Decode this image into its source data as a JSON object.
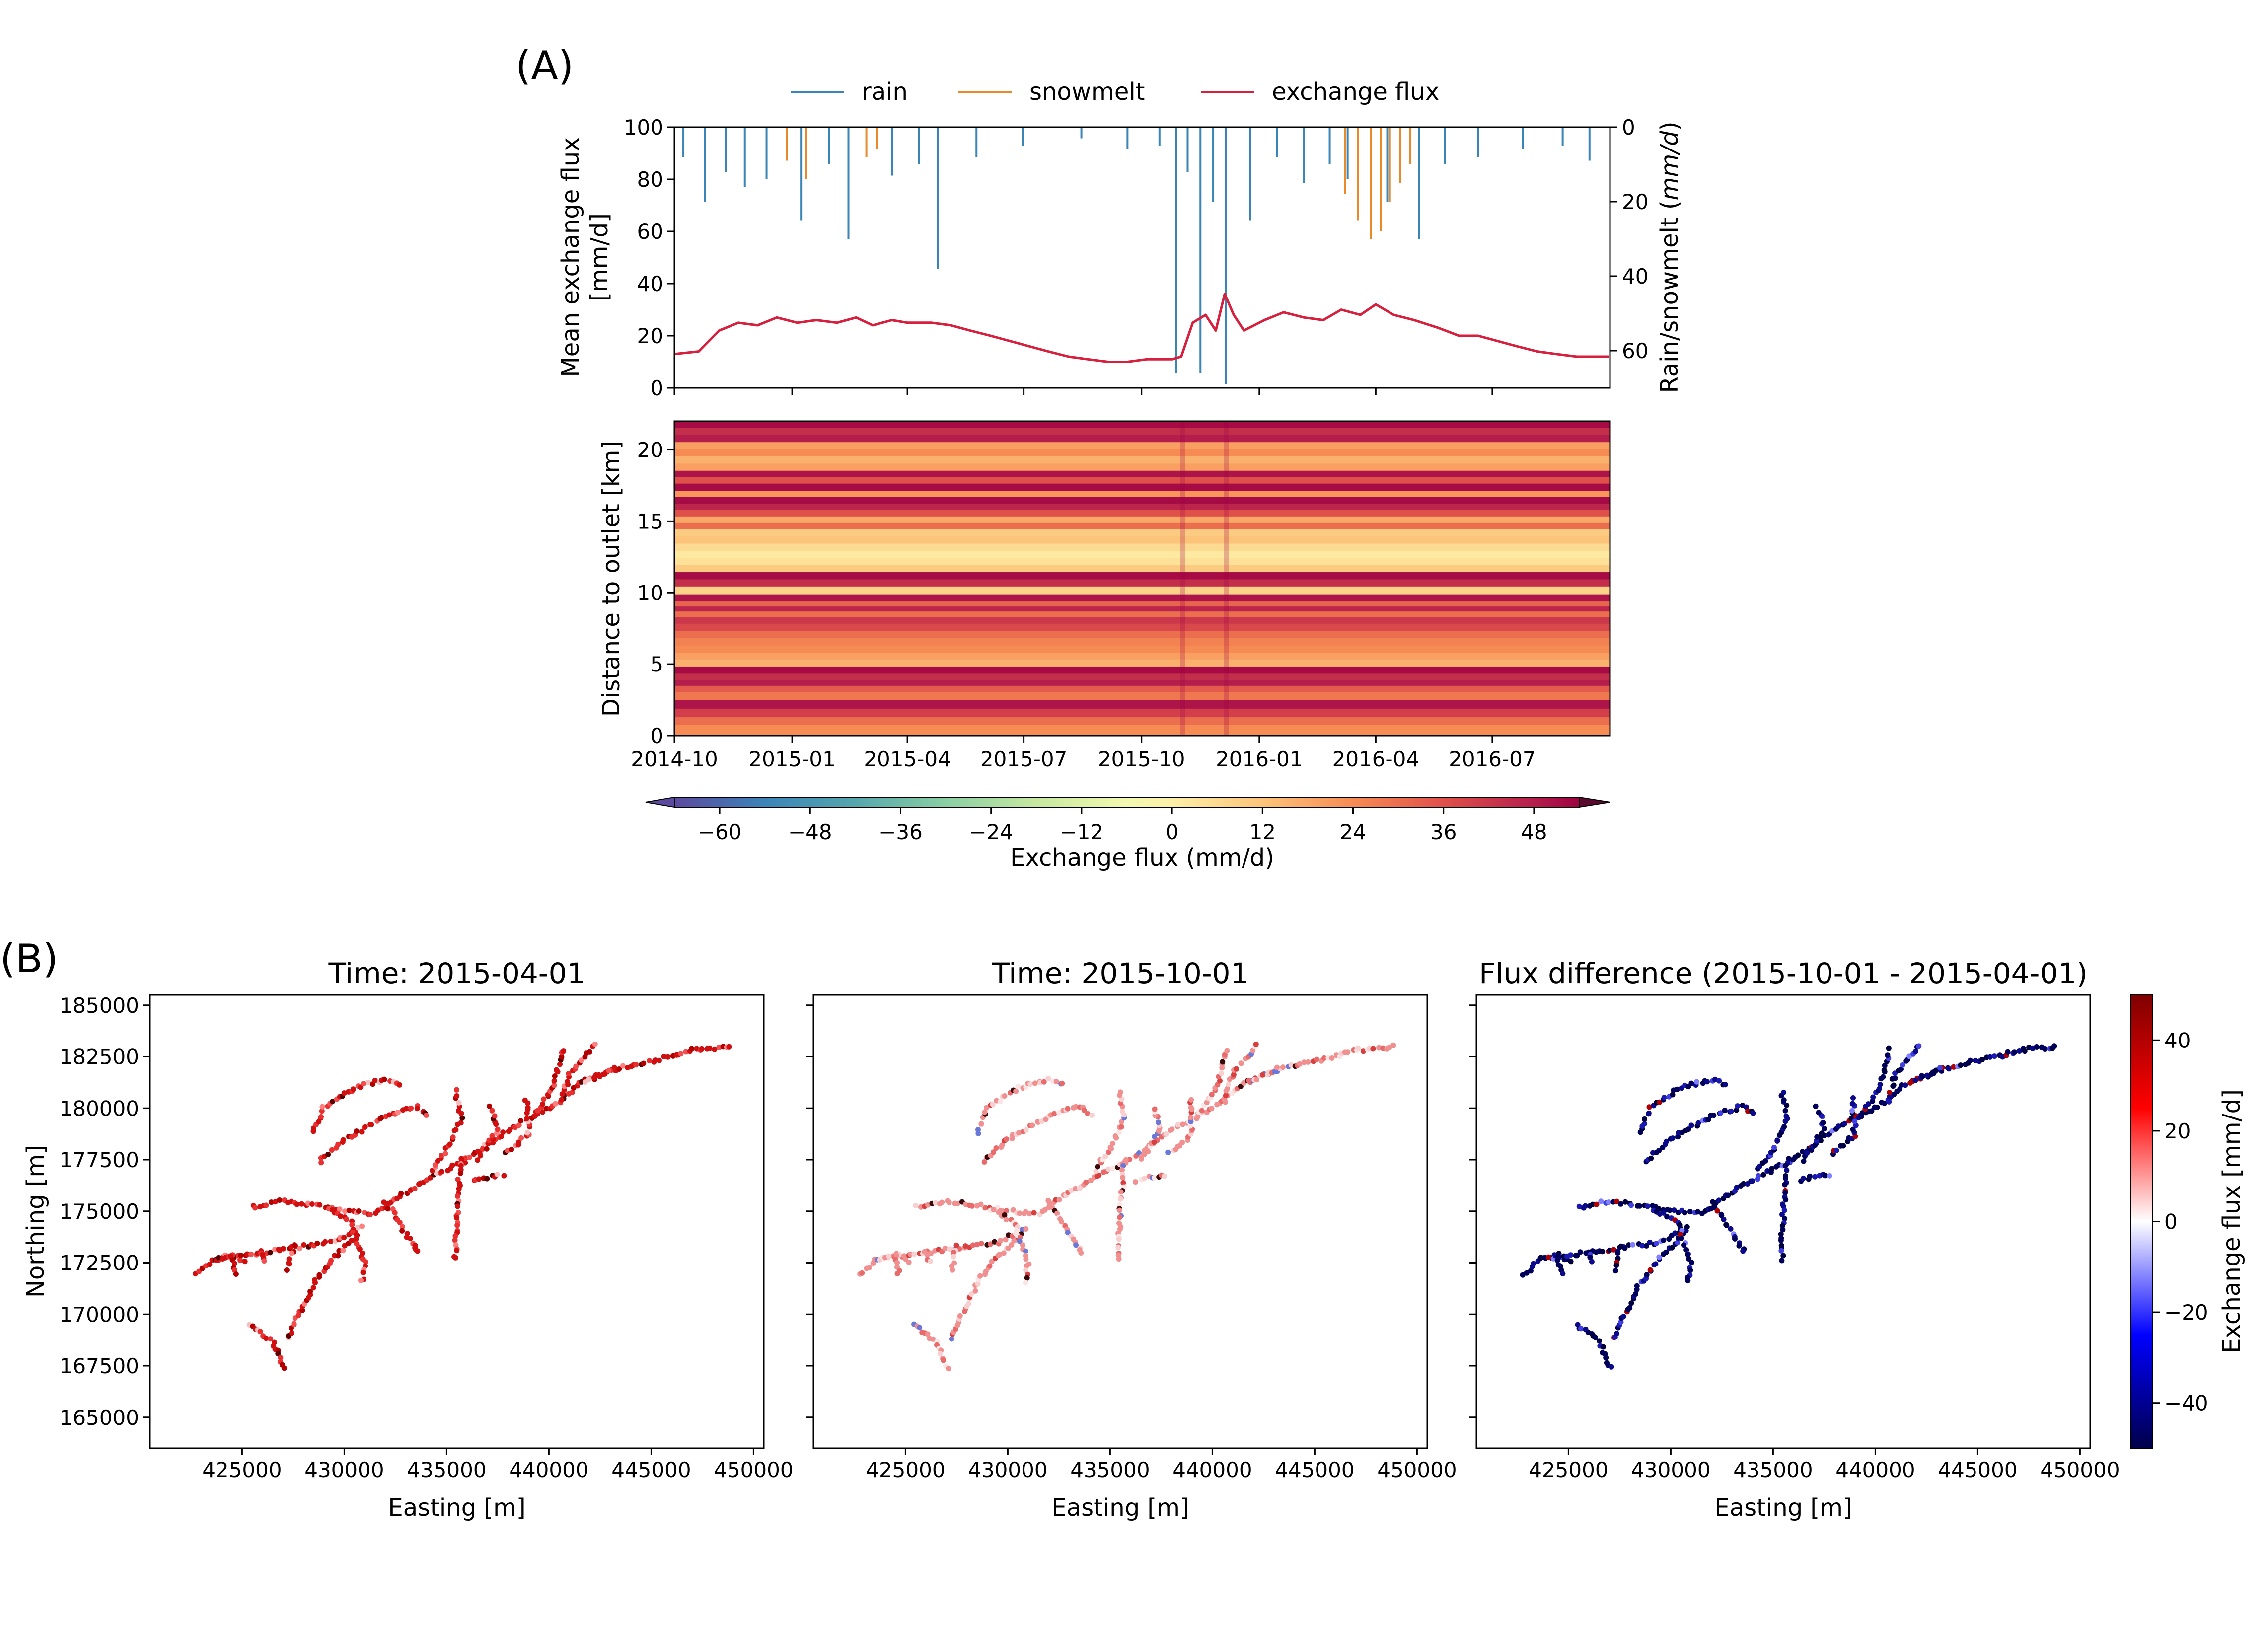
{
  "panel_labels": {
    "a": "(A)",
    "b": "(B)"
  },
  "colors": {
    "rain": "#3a84b6",
    "snowmelt": "#e8892a",
    "exchange_flux": "#d6203e",
    "heat_cold": "#a30d4f",
    "heat_warm": "#fbf0a8",
    "diverging_neg": "#00004a",
    "diverging_pos": "#7a0000"
  },
  "chart_data": [
    {
      "id": "timeseries",
      "type": "line",
      "legend": [
        "rain",
        "snowmelt",
        "exchange flux"
      ],
      "legend_placement": "top-center",
      "ylabel_left_line1": "Mean exchange flux",
      "ylabel_left_line2": "[mm/d]",
      "ylabel_right": "Rain/snowmelt (mm/d)",
      "ylim_left": [
        0,
        100
      ],
      "ylim_right_inverted": [
        0,
        70
      ],
      "yticks_left": [
        "0",
        "20",
        "40",
        "60",
        "80",
        "100"
      ],
      "yticks_right": [
        "0",
        "20",
        "40",
        "60"
      ],
      "x_range": [
        "2014-10",
        "2016-10"
      ],
      "series": [
        {
          "name": "exchange flux",
          "x": [
            "2014-10-01",
            "2014-10-20",
            "2014-11-05",
            "2014-11-20",
            "2014-12-05",
            "2014-12-20",
            "2015-01-05",
            "2015-01-20",
            "2015-02-05",
            "2015-02-20",
            "2015-03-05",
            "2015-03-20",
            "2015-04-01",
            "2015-04-20",
            "2015-05-05",
            "2015-05-20",
            "2015-06-05",
            "2015-06-20",
            "2015-07-05",
            "2015-07-20",
            "2015-08-05",
            "2015-08-20",
            "2015-09-05",
            "2015-09-20",
            "2015-10-05",
            "2015-10-25",
            "2015-11-01",
            "2015-11-10",
            "2015-11-20",
            "2015-11-28",
            "2015-12-05",
            "2015-12-12",
            "2015-12-20",
            "2016-01-05",
            "2016-01-20",
            "2016-02-05",
            "2016-02-20",
            "2016-03-05",
            "2016-03-20",
            "2016-04-01",
            "2016-04-15",
            "2016-05-01",
            "2016-05-20",
            "2016-06-05",
            "2016-06-20",
            "2016-07-05",
            "2016-07-20",
            "2016-08-05",
            "2016-08-20",
            "2016-09-05",
            "2016-09-20",
            "2016-09-30"
          ],
          "values": [
            13,
            14,
            22,
            25,
            24,
            27,
            25,
            26,
            25,
            27,
            24,
            26,
            25,
            25,
            24,
            22,
            20,
            18,
            16,
            14,
            12,
            11,
            10,
            10,
            11,
            11,
            12,
            25,
            28,
            22,
            36,
            28,
            22,
            26,
            29,
            27,
            26,
            30,
            28,
            32,
            28,
            26,
            23,
            20,
            20,
            18,
            16,
            14,
            13,
            12,
            12,
            12
          ]
        },
        {
          "name": "rain",
          "x": [
            "2014-10-08",
            "2014-10-25",
            "2014-11-10",
            "2014-11-25",
            "2014-12-12",
            "2015-01-08",
            "2015-01-30",
            "2015-02-14",
            "2015-03-20",
            "2015-04-10",
            "2015-04-25",
            "2015-05-25",
            "2015-06-30",
            "2015-08-15",
            "2015-09-20",
            "2015-10-15",
            "2015-10-28",
            "2015-11-06",
            "2015-11-16",
            "2015-11-26",
            "2015-12-06",
            "2015-12-25",
            "2016-01-15",
            "2016-02-05",
            "2016-02-25",
            "2016-03-10",
            "2016-04-10",
            "2016-05-05",
            "2016-05-25",
            "2016-06-20",
            "2016-07-25",
            "2016-08-25",
            "2016-09-15"
          ],
          "values": [
            8,
            20,
            12,
            16,
            14,
            25,
            10,
            30,
            13,
            10,
            38,
            8,
            5,
            3,
            6,
            5,
            66,
            12,
            66,
            20,
            69,
            25,
            8,
            15,
            10,
            14,
            20,
            30,
            10,
            8,
            6,
            5,
            9
          ]
        },
        {
          "name": "snowmelt",
          "x": [
            "2014-12-28",
            "2015-01-12",
            "2015-02-28",
            "2015-03-08",
            "2016-03-08",
            "2016-03-18",
            "2016-03-28",
            "2016-04-05",
            "2016-04-12",
            "2016-04-20",
            "2016-04-28"
          ],
          "values": [
            9,
            14,
            8,
            6,
            18,
            25,
            30,
            28,
            20,
            15,
            10
          ]
        }
      ]
    },
    {
      "id": "heatmap",
      "type": "heatmap",
      "ylabel": "Distance to outlet [km]",
      "ylim": [
        0,
        22
      ],
      "yticks": [
        "0",
        "5",
        "10",
        "15",
        "20"
      ],
      "xticks": [
        "2014-10",
        "2015-01",
        "2015-04",
        "2015-07",
        "2015-10",
        "2016-01",
        "2016-04",
        "2016-07"
      ],
      "x_range": [
        "2014-10-01",
        "2016-09-30"
      ],
      "colorbar_label": "Exchange flux (mm/d)",
      "colorbar_ticks": [
        "−60",
        "−48",
        "−36",
        "−24",
        "−12",
        "0",
        "12",
        "24",
        "36",
        "48"
      ],
      "colorbar_range": [
        -66,
        54
      ],
      "row_flux_km": [
        {
          "km": 0.5,
          "v": 24
        },
        {
          "km": 1.0,
          "v": 30
        },
        {
          "km": 1.6,
          "v": 40
        },
        {
          "km": 2.2,
          "v": 50
        },
        {
          "km": 2.8,
          "v": 28
        },
        {
          "km": 3.3,
          "v": 34
        },
        {
          "km": 3.7,
          "v": 48
        },
        {
          "km": 4.1,
          "v": 44
        },
        {
          "km": 4.6,
          "v": 52
        },
        {
          "km": 5.1,
          "v": 16
        },
        {
          "km": 5.6,
          "v": 20
        },
        {
          "km": 6.0,
          "v": 24
        },
        {
          "km": 6.6,
          "v": 26
        },
        {
          "km": 7.1,
          "v": 30
        },
        {
          "km": 7.6,
          "v": 38
        },
        {
          "km": 8.1,
          "v": 42
        },
        {
          "km": 8.5,
          "v": 30
        },
        {
          "km": 8.9,
          "v": 46
        },
        {
          "km": 9.2,
          "v": 32
        },
        {
          "km": 9.6,
          "v": 50
        },
        {
          "km": 10.2,
          "v": 8
        },
        {
          "km": 10.7,
          "v": 44
        },
        {
          "km": 11.2,
          "v": 52
        },
        {
          "km": 11.7,
          "v": 10
        },
        {
          "km": 12.2,
          "v": 4
        },
        {
          "km": 12.7,
          "v": 2
        },
        {
          "km": 13.2,
          "v": 6
        },
        {
          "km": 13.7,
          "v": 12
        },
        {
          "km": 14.2,
          "v": 10
        },
        {
          "km": 14.7,
          "v": 30
        },
        {
          "km": 15.1,
          "v": 18
        },
        {
          "km": 15.6,
          "v": 36
        },
        {
          "km": 16.0,
          "v": 46
        },
        {
          "km": 16.5,
          "v": 52
        },
        {
          "km": 16.9,
          "v": 22
        },
        {
          "km": 17.4,
          "v": 52
        },
        {
          "km": 17.9,
          "v": 36
        },
        {
          "km": 18.3,
          "v": 50
        },
        {
          "km": 18.8,
          "v": 20
        },
        {
          "km": 19.3,
          "v": 16
        },
        {
          "km": 19.8,
          "v": 24
        },
        {
          "km": 20.3,
          "v": 20
        },
        {
          "km": 20.8,
          "v": 48
        },
        {
          "km": 21.3,
          "v": 44
        },
        {
          "km": 21.8,
          "v": 52
        }
      ]
    },
    {
      "id": "map1",
      "type": "scatter",
      "title": "Time: 2015-04-01",
      "xlabel": "Easting [m]",
      "ylabel": "Northing [m]",
      "xlim": [
        420500,
        450500
      ],
      "ylim": [
        163500,
        185500
      ],
      "xticks": [
        "425000",
        "430000",
        "435000",
        "440000",
        "445000",
        "450000"
      ],
      "yticks": [
        "165000",
        "167500",
        "170000",
        "172500",
        "175000",
        "177500",
        "180000",
        "182500",
        "185000"
      ],
      "dominant_sign": "positive"
    },
    {
      "id": "map2",
      "type": "scatter",
      "title": "Time: 2015-10-01",
      "xlabel": "Easting [m]",
      "xlim": [
        420500,
        450500
      ],
      "ylim": [
        163500,
        185500
      ],
      "xticks": [
        "425000",
        "430000",
        "435000",
        "440000",
        "445000",
        "450000"
      ],
      "dominant_sign": "weak positive"
    },
    {
      "id": "map3",
      "type": "scatter",
      "title": "Flux difference (2015-10-01 - 2015-04-01)",
      "xlabel": "Easting [m]",
      "xlim": [
        420500,
        450500
      ],
      "ylim": [
        163500,
        185500
      ],
      "xticks": [
        "425000",
        "430000",
        "435000",
        "440000",
        "445000",
        "450000"
      ],
      "dominant_sign": "negative",
      "colorbar_label": "Exchange flux [mm/d]",
      "colorbar_ticks": [
        "40",
        "20",
        "0",
        "−20",
        "−40"
      ],
      "colorbar_range": [
        -50,
        50
      ]
    }
  ],
  "river_network": [
    [
      [
        422800,
        171900
      ],
      [
        423500,
        172600
      ],
      [
        424500,
        172900
      ],
      [
        425300,
        172500
      ]
    ],
    [
      [
        423700,
        172700
      ],
      [
        426000,
        173000
      ],
      [
        428000,
        173300
      ],
      [
        429500,
        173500
      ],
      [
        431000,
        174300
      ]
    ],
    [
      [
        424500,
        172800
      ],
      [
        424700,
        171800
      ]
    ],
    [
      [
        426000,
        173000
      ],
      [
        426200,
        172400
      ]
    ],
    [
      [
        427500,
        173300
      ],
      [
        427200,
        172000
      ]
    ],
    [
      [
        425400,
        169500
      ],
      [
        426500,
        168700
      ],
      [
        427100,
        167200
      ]
    ],
    [
      [
        427200,
        168800
      ],
      [
        428500,
        171500
      ],
      [
        429500,
        172800
      ],
      [
        430800,
        174000
      ]
    ],
    [
      [
        425500,
        175200
      ],
      [
        427000,
        175500
      ],
      [
        428500,
        175300
      ],
      [
        430000,
        175000
      ],
      [
        431500,
        174900
      ]
    ],
    [
      [
        429200,
        175100
      ],
      [
        430300,
        174500
      ],
      [
        431000,
        172500
      ],
      [
        430800,
        171400
      ]
    ],
    [
      [
        431500,
        174900
      ],
      [
        433000,
        175900
      ],
      [
        434500,
        176800
      ],
      [
        436000,
        177500
      ],
      [
        437500,
        178600
      ],
      [
        439000,
        179500
      ],
      [
        440500,
        180300
      ],
      [
        441500,
        181200
      ],
      [
        443000,
        181800
      ],
      [
        444500,
        182200
      ],
      [
        446000,
        182500
      ],
      [
        447000,
        182800
      ],
      [
        449000,
        183000
      ]
    ],
    [
      [
        432000,
        175500
      ],
      [
        433500,
        173200
      ],
      [
        433600,
        172900
      ]
    ],
    [
      [
        428800,
        177400
      ],
      [
        430000,
        178500
      ],
      [
        432000,
        179600
      ],
      [
        433500,
        180100
      ],
      [
        434200,
        179600
      ]
    ],
    [
      [
        428500,
        178800
      ],
      [
        429000,
        180000
      ],
      [
        430500,
        181000
      ],
      [
        432000,
        181400
      ],
      [
        432900,
        181100
      ]
    ],
    [
      [
        434300,
        177000
      ],
      [
        435000,
        178000
      ],
      [
        435700,
        179500
      ],
      [
        435400,
        181000
      ]
    ],
    [
      [
        435700,
        177500
      ],
      [
        435500,
        175000
      ],
      [
        435400,
        172500
      ]
    ],
    [
      [
        436300,
        176500
      ],
      [
        437200,
        176700
      ],
      [
        437900,
        176800
      ]
    ],
    [
      [
        436500,
        177500
      ],
      [
        437500,
        179000
      ],
      [
        437100,
        180200
      ]
    ],
    [
      [
        437900,
        177800
      ],
      [
        439000,
        178700
      ],
      [
        438900,
        180600
      ]
    ],
    [
      [
        439200,
        179500
      ],
      [
        440200,
        181000
      ],
      [
        440700,
        183000
      ]
    ],
    [
      [
        440600,
        180300
      ],
      [
        441000,
        181700
      ],
      [
        442300,
        183200
      ]
    ],
    [
      [
        441800,
        181300
      ],
      [
        442700,
        181700
      ],
      [
        443300,
        182000
      ]
    ]
  ]
}
